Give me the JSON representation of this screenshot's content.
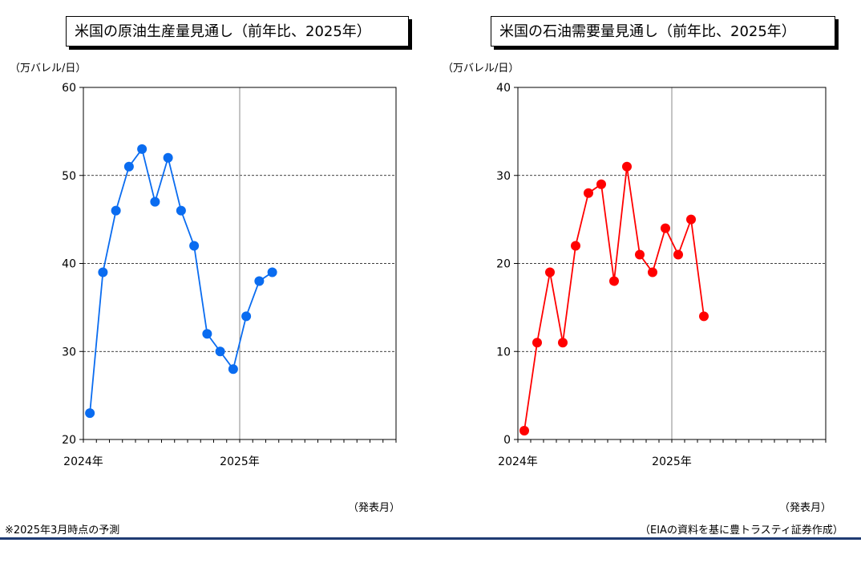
{
  "charts": [
    {
      "title": "米国の原油生産量見通し（前年比、2025年）",
      "unit": "（万バレル/日）",
      "xunit": "（発表月）"
    },
    {
      "title": "米国の石油需要量見通し（前年比、2025年）",
      "unit": "（万バレル/日）",
      "xunit": "（発表月）"
    }
  ],
  "footnotes": {
    "left": "※2025年3月時点の予測",
    "right": "（EIAの資料を基に豊トラスティ証券作成）"
  },
  "chart_data": [
    {
      "type": "line",
      "title": "米国の原油生産量見通し（前年比、2025年）",
      "ylabel": "（万バレル/日）",
      "xlabel": "（発表月）",
      "ylim": [
        20,
        60
      ],
      "yticks": [
        20,
        30,
        40,
        50,
        60
      ],
      "x_tick_labels": [
        "2024年",
        "2025年"
      ],
      "x_tick_index": [
        0,
        12
      ],
      "x_slots": 24,
      "grid": "horizontal dashed",
      "color": "#0a6cf0",
      "series": [
        {
          "values": [
            23,
            39,
            46,
            51,
            53,
            47,
            52,
            46,
            42,
            32,
            30,
            28,
            34,
            38,
            39
          ]
        }
      ]
    },
    {
      "type": "line",
      "title": "米国の石油需要量見通し（前年比、2025年）",
      "ylabel": "（万バレル/日）",
      "xlabel": "（発表月）",
      "ylim": [
        0,
        40
      ],
      "yticks": [
        0,
        10,
        20,
        30,
        40
      ],
      "x_tick_labels": [
        "2024年",
        "2025年"
      ],
      "x_tick_index": [
        0,
        12
      ],
      "x_slots": 24,
      "grid": "horizontal dashed",
      "color": "#ff0000",
      "series": [
        {
          "values": [
            1,
            11,
            19,
            11,
            22,
            28,
            29,
            18,
            31,
            21,
            19,
            24,
            21,
            25,
            14
          ]
        }
      ]
    }
  ]
}
